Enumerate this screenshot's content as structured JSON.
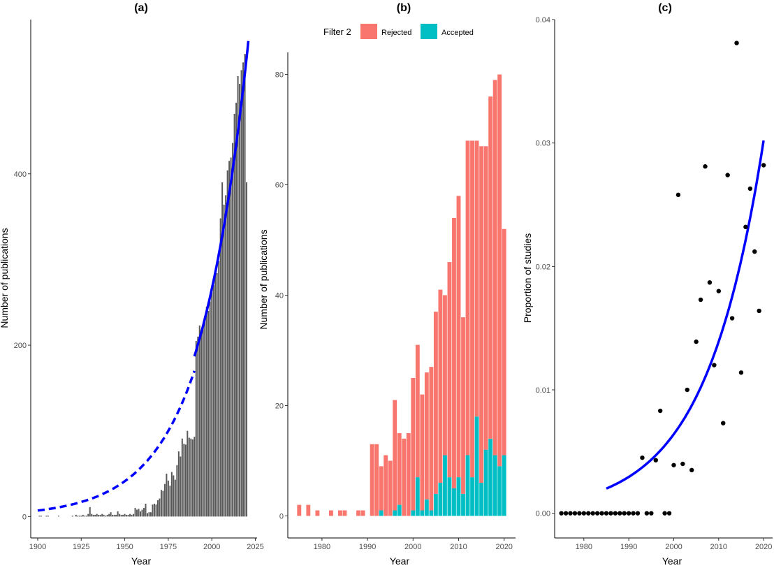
{
  "chart_data": [
    {
      "id": "a",
      "type": "bar",
      "title": "(a)",
      "xlabel": "Year",
      "ylabel": "Number of publications",
      "xlim": [
        1896,
        2026
      ],
      "ylim": [
        -25,
        580
      ],
      "xticks": [
        1900,
        1925,
        1950,
        1975,
        2000,
        2025
      ],
      "yticks": [
        0,
        200,
        400
      ],
      "bar_color": "#595959",
      "x": [
        1901,
        1902,
        1905,
        1906,
        1912,
        1920,
        1922,
        1923,
        1924,
        1925,
        1926,
        1927,
        1928,
        1929,
        1930,
        1931,
        1932,
        1933,
        1934,
        1935,
        1936,
        1937,
        1938,
        1939,
        1940,
        1941,
        1942,
        1943,
        1944,
        1945,
        1946,
        1947,
        1948,
        1949,
        1950,
        1951,
        1952,
        1953,
        1954,
        1955,
        1956,
        1957,
        1958,
        1959,
        1960,
        1961,
        1962,
        1963,
        1964,
        1965,
        1966,
        1967,
        1968,
        1969,
        1970,
        1971,
        1972,
        1973,
        1974,
        1975,
        1976,
        1977,
        1978,
        1979,
        1980,
        1981,
        1982,
        1983,
        1984,
        1985,
        1986,
        1987,
        1988,
        1989,
        1990,
        1991,
        1992,
        1993,
        1994,
        1995,
        1996,
        1997,
        1998,
        1999,
        2000,
        2001,
        2002,
        2003,
        2004,
        2005,
        2006,
        2007,
        2008,
        2009,
        2010,
        2011,
        2012,
        2013,
        2014,
        2015,
        2016,
        2017,
        2018,
        2019,
        2020
      ],
      "values": [
        1,
        1,
        1,
        1,
        1,
        1,
        2,
        1,
        1,
        1,
        2,
        1,
        1,
        3,
        11,
        3,
        2,
        2,
        3,
        2,
        2,
        3,
        2,
        1,
        2,
        3,
        5,
        2,
        2,
        2,
        6,
        3,
        2,
        2,
        3,
        2,
        2,
        3,
        2,
        3,
        10,
        8,
        9,
        6,
        8,
        10,
        15,
        4,
        5,
        5,
        14,
        15,
        14,
        19,
        21,
        31,
        30,
        38,
        50,
        42,
        36,
        52,
        48,
        43,
        60,
        76,
        70,
        91,
        85,
        84,
        100,
        92,
        91,
        90,
        93,
        205,
        210,
        223,
        218,
        221,
        234,
        245,
        240,
        251,
        262,
        270,
        283,
        284,
        298,
        348,
        390,
        364,
        375,
        404,
        415,
        419,
        436,
        470,
        483,
        514,
        505,
        521,
        530,
        540,
        390
      ],
      "fit_dashed": {
        "x": [
          1900,
          1990
        ],
        "curve": "exponential",
        "y_start": 7,
        "y_end": 170,
        "color": "#0000ff"
      },
      "fit_solid": {
        "x": [
          1990,
          2021
        ],
        "curve": "exponential",
        "y_start": 187,
        "y_end": 555,
        "color": "#0000ff"
      }
    },
    {
      "id": "b",
      "type": "bar",
      "stacked": true,
      "title": "(b)",
      "xlabel": "Year",
      "ylabel": "Number of publications",
      "xlim": [
        1972.5,
        2022.5
      ],
      "ylim": [
        -4,
        84
      ],
      "xticks": [
        1980,
        1990,
        2000,
        2010,
        2020
      ],
      "yticks": [
        0,
        20,
        40,
        60,
        80
      ],
      "legend": {
        "title": "Filter 2",
        "position": "top",
        "entries": [
          {
            "label": "Rejected",
            "color": "#f8766d"
          },
          {
            "label": "Accepted",
            "color": "#00bfc4"
          }
        ]
      },
      "categories": [
        1975,
        1977,
        1979,
        1982,
        1984,
        1985,
        1988,
        1989,
        1991,
        1992,
        1993,
        1994,
        1995,
        1996,
        1997,
        1998,
        1999,
        2000,
        2001,
        2002,
        2003,
        2004,
        2005,
        2006,
        2007,
        2008,
        2009,
        2010,
        2011,
        2012,
        2013,
        2014,
        2015,
        2016,
        2017,
        2018,
        2019,
        2020
      ],
      "series": [
        {
          "name": "Accepted",
          "values": [
            0,
            0,
            0,
            0,
            0,
            0,
            0,
            0,
            0,
            0,
            1,
            0,
            0,
            1,
            2,
            0,
            0,
            1,
            7,
            1,
            3,
            1,
            4,
            6,
            11,
            7,
            5,
            7,
            4,
            11,
            7,
            18,
            6,
            12,
            14,
            11,
            9,
            11
          ]
        },
        {
          "name": "Rejected",
          "values": [
            2,
            2,
            1,
            1,
            1,
            1,
            1,
            1,
            13,
            13,
            8,
            11,
            10,
            20,
            13,
            14,
            15,
            24,
            24,
            21,
            23,
            26,
            33,
            35,
            29,
            39,
            49,
            51,
            32,
            57,
            61,
            50,
            61,
            55,
            62,
            68,
            71,
            41
          ]
        }
      ]
    },
    {
      "id": "c",
      "type": "scatter",
      "title": "(c)",
      "xlabel": "Year",
      "ylabel": "Proportion of studies",
      "xlim": [
        1973.5,
        2022
      ],
      "ylim": [
        -0.002,
        0.04
      ],
      "xticks": [
        1980,
        1990,
        2000,
        2010,
        2020
      ],
      "yticks": [
        0.0,
        0.01,
        0.02,
        0.03,
        0.04
      ],
      "ytick_labels": [
        "0.00",
        "0.01",
        "0.02",
        "0.03",
        "0.04"
      ],
      "point_color": "#000000",
      "x": [
        1975,
        1976,
        1977,
        1978,
        1979,
        1980,
        1981,
        1982,
        1983,
        1984,
        1985,
        1986,
        1987,
        1988,
        1989,
        1990,
        1991,
        1992,
        1993,
        1994,
        1995,
        1996,
        1997,
        1998,
        1999,
        2000,
        2001,
        2002,
        2003,
        2004,
        2005,
        2006,
        2007,
        2008,
        2009,
        2010,
        2011,
        2012,
        2013,
        2014,
        2015,
        2016,
        2017,
        2018,
        2019,
        2020
      ],
      "y": [
        0,
        0,
        0,
        0,
        0,
        0,
        0,
        0,
        0,
        0,
        0,
        0,
        0,
        0,
        0,
        0,
        0,
        0,
        0.0045,
        0,
        0,
        0.0043,
        0.0083,
        0,
        0,
        0.0039,
        0.0258,
        0.004,
        0.01,
        0.0035,
        0.0139,
        0.0173,
        0.0281,
        0.0187,
        0.012,
        0.018,
        0.0073,
        0.0274,
        0.0158,
        0.0381,
        0.0114,
        0.0232,
        0.0263,
        0.0212,
        0.0164,
        0.0282
      ],
      "fit": {
        "x": [
          1985,
          2020
        ],
        "curve": "exponential",
        "y_start": 0.002,
        "y_end": 0.0302,
        "color": "#0000ff"
      }
    }
  ]
}
